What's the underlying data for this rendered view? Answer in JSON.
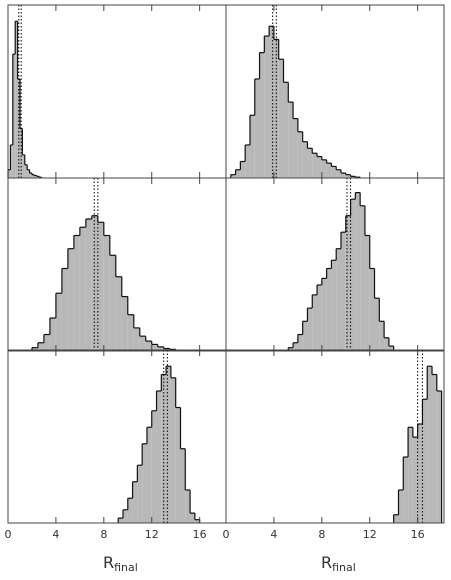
{
  "chart_data": [
    {
      "type": "histogram",
      "bins": [
        0,
        0.2,
        0.4,
        0.6,
        0.8,
        1.0,
        1.2,
        1.4,
        1.6,
        1.8,
        2.0,
        2.2,
        2.4,
        2.6,
        2.8
      ],
      "values": [
        5,
        20,
        75,
        95,
        60,
        30,
        14,
        8,
        5,
        3,
        2,
        1.5,
        1,
        0.5
      ],
      "color": "#b8b8b8",
      "xlim": [
        0,
        18.2
      ],
      "ylim": [
        0,
        100
      ],
      "xticks": [
        0,
        4,
        8,
        12,
        16
      ],
      "vlines": [
        0.9,
        1.1
      ]
    },
    {
      "type": "histogram",
      "bins": [
        0.4,
        0.8,
        1.2,
        1.6,
        2.0,
        2.4,
        2.8,
        3.2,
        3.6,
        4.0,
        4.4,
        4.8,
        5.2,
        5.6,
        6.0,
        6.4,
        6.8,
        7.2,
        7.6,
        8.0,
        8.4,
        8.8,
        9.2,
        9.6,
        10.0,
        10.4,
        10.8,
        11.2
      ],
      "values": [
        2,
        5,
        10,
        20,
        38,
        60,
        76,
        86,
        92,
        84,
        72,
        58,
        46,
        36,
        28,
        22,
        18,
        15,
        13,
        11,
        9,
        7,
        5,
        3,
        2,
        1,
        0.5
      ],
      "color": "#b8b8b8",
      "xlim": [
        0,
        18.2
      ],
      "ylim": [
        0,
        100
      ],
      "xticks": [
        0,
        4,
        8,
        12,
        16
      ],
      "vlines": [
        3.9,
        4.2
      ]
    },
    {
      "type": "histogram",
      "bins": [
        2,
        2.5,
        3,
        3.5,
        4,
        4.5,
        5,
        5.5,
        6,
        6.5,
        7,
        7.5,
        8,
        8.5,
        9,
        9.5,
        10,
        10.5,
        11,
        11.5,
        12,
        12.5,
        13,
        13.5,
        14
      ],
      "values": [
        2,
        5,
        10,
        20,
        35,
        50,
        62,
        70,
        75,
        80,
        82,
        78,
        70,
        58,
        45,
        33,
        22,
        14,
        9,
        6,
        4,
        2.5,
        1.5,
        1
      ],
      "color": "#b8b8b8",
      "xlim": [
        0,
        18.2
      ],
      "ylim": [
        0,
        100
      ],
      "xticks": [
        0,
        4,
        8,
        12,
        16
      ],
      "vlines": [
        7.2,
        7.5
      ]
    },
    {
      "type": "histogram",
      "bins": [
        5.2,
        5.6,
        6.0,
        6.4,
        6.8,
        7.2,
        7.6,
        8.0,
        8.4,
        8.8,
        9.2,
        9.6,
        10.0,
        10.4,
        10.8,
        11.2,
        11.6,
        12.0,
        12.4,
        12.8,
        13.2,
        13.6,
        14.0
      ],
      "values": [
        2,
        5,
        10,
        18,
        26,
        34,
        40,
        44,
        50,
        55,
        62,
        72,
        82,
        92,
        96,
        88,
        70,
        50,
        32,
        18,
        8,
        3
      ],
      "color": "#b8b8b8",
      "xlim": [
        0,
        18.2
      ],
      "ylim": [
        0,
        100
      ],
      "xticks": [
        0,
        4,
        8,
        12,
        16
      ],
      "vlines": [
        10.1,
        10.4
      ]
    },
    {
      "type": "histogram",
      "bins": [
        9.2,
        9.6,
        10.0,
        10.4,
        10.8,
        11.2,
        11.6,
        12.0,
        12.4,
        12.8,
        13.2,
        13.6,
        14.0,
        14.4,
        14.8,
        15.2,
        15.6,
        16.0
      ],
      "values": [
        3,
        8,
        15,
        25,
        35,
        48,
        58,
        68,
        80,
        90,
        95,
        88,
        70,
        45,
        20,
        6,
        2
      ],
      "color": "#b8b8b8",
      "xlim": [
        0,
        18.2
      ],
      "ylim": [
        0,
        100
      ],
      "xticks": [
        0,
        4,
        8,
        12,
        16
      ],
      "vlines": [
        13.0,
        13.3
      ],
      "xlabel": "R",
      "xlabel_sub": "final"
    },
    {
      "type": "histogram",
      "bins": [
        14.0,
        14.4,
        14.8,
        15.2,
        15.6,
        16.0,
        16.4,
        16.8,
        17.2,
        17.6,
        18.0
      ],
      "values": [
        5,
        20,
        40,
        58,
        52,
        60,
        75,
        95,
        90,
        80
      ],
      "color": "#b8b8b8",
      "xlim": [
        0,
        18.2
      ],
      "ylim": [
        0,
        100
      ],
      "xticks": [
        0,
        4,
        8,
        12,
        16
      ],
      "vlines": [
        16.0,
        16.4
      ],
      "xlabel": "R",
      "xlabel_sub": "final"
    }
  ]
}
